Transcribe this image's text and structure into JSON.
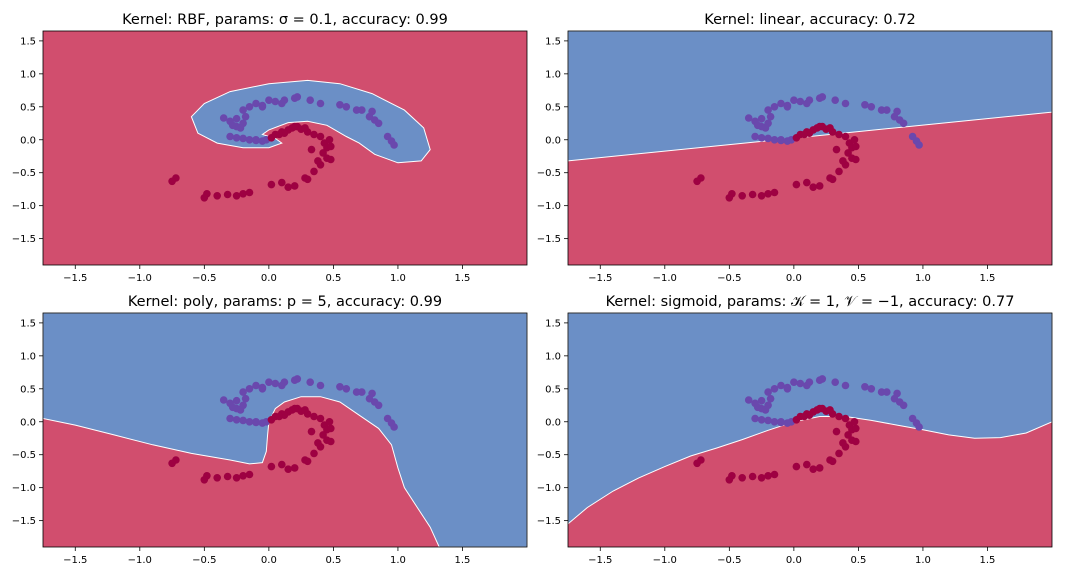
{
  "figure": {
    "background": "#ffffff",
    "region_colors": {
      "class_0": "#d14e6e",
      "class_1": "#6b8fc6"
    },
    "point_colors": {
      "class_0": "#9e0142",
      "class_1": "#6a48ad"
    }
  },
  "chart_data": [
    {
      "type": "scatter",
      "title": "Kernel: RBF, params: σ = 0.1, accuracy: 0.99",
      "xlim": [
        -1.75,
        2.0
      ],
      "ylim": [
        -1.9,
        1.65
      ],
      "xticks": [
        -1.5,
        -1.0,
        -0.5,
        0.0,
        0.5,
        1.0,
        1.5
      ],
      "yticks": [
        -1.5,
        -1.0,
        -0.5,
        0.0,
        0.5,
        1.0,
        1.5
      ],
      "xtick_labels": [
        "−1.5",
        "−1.0",
        "−0.5",
        "0.0",
        "0.5",
        "1.0",
        "1.5"
      ],
      "ytick_labels": [
        "−1.5",
        "−1.0",
        "−0.5",
        "0.0",
        "0.5",
        "1.0",
        "1.5"
      ],
      "background_class": "class_0",
      "decision_region": {
        "class": "class_1",
        "kind": "closed",
        "boundary": [
          [
            -0.6,
            0.35
          ],
          [
            -0.5,
            0.55
          ],
          [
            -0.3,
            0.73
          ],
          [
            0.0,
            0.85
          ],
          [
            0.3,
            0.9
          ],
          [
            0.55,
            0.85
          ],
          [
            0.8,
            0.7
          ],
          [
            1.05,
            0.45
          ],
          [
            1.2,
            0.18
          ],
          [
            1.25,
            -0.15
          ],
          [
            1.18,
            -0.32
          ],
          [
            1.0,
            -0.35
          ],
          [
            0.82,
            -0.22
          ],
          [
            0.7,
            -0.05
          ],
          [
            0.6,
            0.05
          ],
          [
            0.45,
            0.22
          ],
          [
            0.3,
            0.28
          ],
          [
            0.15,
            0.26
          ],
          [
            0.0,
            0.15
          ],
          [
            -0.05,
            0.08
          ],
          [
            0.05,
            0.02
          ],
          [
            0.1,
            -0.05
          ],
          [
            0.0,
            -0.12
          ],
          [
            -0.2,
            -0.12
          ],
          [
            -0.4,
            -0.05
          ],
          [
            -0.55,
            0.1
          ],
          [
            -0.6,
            0.35
          ]
        ]
      }
    },
    {
      "type": "scatter",
      "title": "Kernel: linear, accuracy: 0.72",
      "xlim": [
        -1.75,
        2.0
      ],
      "ylim": [
        -1.9,
        1.65
      ],
      "xticks": [
        -1.5,
        -1.0,
        -0.5,
        0.0,
        0.5,
        1.0,
        1.5
      ],
      "yticks": [
        -1.5,
        -1.0,
        -0.5,
        0.0,
        0.5,
        1.0,
        1.5
      ],
      "xtick_labels": [
        "−1.5",
        "−1.0",
        "−0.5",
        "0.0",
        "0.5",
        "1.0",
        "1.5"
      ],
      "ytick_labels": [
        "−1.5",
        "−1.0",
        "−0.5",
        "0.0",
        "0.5",
        "1.0",
        "1.5"
      ],
      "background_class": "class_0",
      "decision_region": {
        "class": "class_1",
        "kind": "top",
        "boundary": [
          [
            -1.75,
            -0.32
          ],
          [
            2.0,
            0.42
          ]
        ]
      }
    },
    {
      "type": "scatter",
      "title": "Kernel: poly, params: p = 5, accuracy: 0.99",
      "xlim": [
        -1.75,
        2.0
      ],
      "ylim": [
        -1.9,
        1.65
      ],
      "xticks": [
        -1.5,
        -1.0,
        -0.5,
        0.0,
        0.5,
        1.0,
        1.5
      ],
      "yticks": [
        -1.5,
        -1.0,
        -0.5,
        0.0,
        0.5,
        1.0,
        1.5
      ],
      "xtick_labels": [
        "−1.5",
        "−1.0",
        "−0.5",
        "0.0",
        "0.5",
        "1.0",
        "1.5"
      ],
      "ytick_labels": [
        "−1.5",
        "−1.0",
        "−0.5",
        "0.0",
        "0.5",
        "1.0",
        "1.5"
      ],
      "background_class": "class_0",
      "decision_region": {
        "class": "class_1",
        "kind": "top",
        "boundary": [
          [
            -1.75,
            0.05
          ],
          [
            -1.5,
            -0.05
          ],
          [
            -1.2,
            -0.2
          ],
          [
            -0.9,
            -0.35
          ],
          [
            -0.6,
            -0.48
          ],
          [
            -0.3,
            -0.58
          ],
          [
            -0.15,
            -0.64
          ],
          [
            -0.05,
            -0.62
          ],
          [
            -0.02,
            -0.45
          ],
          [
            -0.01,
            -0.2
          ],
          [
            0.0,
            0.0
          ],
          [
            0.05,
            0.2
          ],
          [
            0.12,
            0.3
          ],
          [
            0.25,
            0.38
          ],
          [
            0.4,
            0.38
          ],
          [
            0.55,
            0.3
          ],
          [
            0.7,
            0.1
          ],
          [
            0.85,
            -0.1
          ],
          [
            0.95,
            -0.35
          ],
          [
            1.0,
            -0.7
          ],
          [
            1.05,
            -1.0
          ],
          [
            1.15,
            -1.3
          ],
          [
            1.25,
            -1.6
          ],
          [
            1.32,
            -1.9
          ]
        ]
      }
    },
    {
      "type": "scatter",
      "title": "Kernel: sigmoid, params: 𝒦 = 1, 𝒱 = −1, accuracy: 0.77",
      "xlim": [
        -1.75,
        2.0
      ],
      "ylim": [
        -1.9,
        1.65
      ],
      "xticks": [
        -1.5,
        -1.0,
        -0.5,
        0.0,
        0.5,
        1.0,
        1.5
      ],
      "yticks": [
        -1.5,
        -1.0,
        -0.5,
        0.0,
        0.5,
        1.0,
        1.5
      ],
      "xtick_labels": [
        "−1.5",
        "−1.0",
        "−0.5",
        "0.0",
        "0.5",
        "1.0",
        "1.5"
      ],
      "ytick_labels": [
        "−1.5",
        "−1.0",
        "−0.5",
        "0.0",
        "0.5",
        "1.0",
        "1.5"
      ],
      "background_class": "class_0",
      "decision_region": {
        "class": "class_1",
        "kind": "top",
        "boundary": [
          [
            -1.75,
            -1.55
          ],
          [
            -1.6,
            -1.3
          ],
          [
            -1.4,
            -1.05
          ],
          [
            -1.2,
            -0.85
          ],
          [
            -1.0,
            -0.68
          ],
          [
            -0.8,
            -0.52
          ],
          [
            -0.6,
            -0.4
          ],
          [
            -0.4,
            -0.27
          ],
          [
            -0.2,
            -0.13
          ],
          [
            0.0,
            0.0
          ],
          [
            0.2,
            0.08
          ],
          [
            0.4,
            0.08
          ],
          [
            0.6,
            0.02
          ],
          [
            0.8,
            -0.05
          ],
          [
            1.0,
            -0.12
          ],
          [
            1.2,
            -0.2
          ],
          [
            1.4,
            -0.25
          ],
          [
            1.6,
            -0.24
          ],
          [
            1.8,
            -0.17
          ],
          [
            2.0,
            0.0
          ]
        ]
      }
    }
  ],
  "points": {
    "class_0": [
      [
        0.02,
        0.03
      ],
      [
        0.05,
        0.08
      ],
      [
        0.1,
        0.12
      ],
      [
        0.15,
        0.15
      ],
      [
        0.18,
        0.18
      ],
      [
        0.22,
        0.2
      ],
      [
        0.25,
        0.16
      ],
      [
        0.3,
        0.12
      ],
      [
        0.35,
        0.08
      ],
      [
        0.4,
        0.05
      ],
      [
        0.43,
        -0.05
      ],
      [
        0.45,
        -0.12
      ],
      [
        0.42,
        -0.2
      ],
      [
        0.45,
        -0.28
      ],
      [
        0.4,
        -0.38
      ],
      [
        0.35,
        -0.48
      ],
      [
        0.28,
        -0.58
      ],
      [
        0.2,
        -0.7
      ],
      [
        0.15,
        -0.72
      ],
      [
        0.02,
        -0.68
      ],
      [
        -0.15,
        -0.8
      ],
      [
        -0.2,
        -0.82
      ],
      [
        -0.25,
        -0.85
      ],
      [
        -0.32,
        -0.83
      ],
      [
        -0.4,
        -0.85
      ],
      [
        -0.48,
        -0.82
      ],
      [
        -0.5,
        -0.88
      ],
      [
        -0.72,
        -0.58
      ],
      [
        -0.75,
        -0.63
      ],
      [
        0.3,
        -0.6
      ],
      [
        0.12,
        0.1
      ],
      [
        0.2,
        0.2
      ],
      [
        0.48,
        -0.1
      ],
      [
        0.48,
        -0.3
      ],
      [
        0.38,
        -0.32
      ],
      [
        0.1,
        -0.65
      ],
      [
        0.08,
        0.08
      ],
      [
        0.28,
        0.18
      ],
      [
        0.33,
        -0.15
      ],
      [
        0.47,
        0.0
      ]
    ],
    "class_1": [
      [
        -0.35,
        0.33
      ],
      [
        -0.3,
        0.28
      ],
      [
        -0.28,
        0.22
      ],
      [
        -0.25,
        0.2
      ],
      [
        -0.22,
        0.18
      ],
      [
        -0.2,
        0.25
      ],
      [
        -0.18,
        0.35
      ],
      [
        -0.2,
        0.45
      ],
      [
        -0.15,
        0.5
      ],
      [
        -0.1,
        0.55
      ],
      [
        -0.05,
        0.52
      ],
      [
        0.0,
        0.6
      ],
      [
        0.05,
        0.58
      ],
      [
        0.12,
        0.6
      ],
      [
        0.2,
        0.63
      ],
      [
        0.22,
        0.65
      ],
      [
        0.32,
        0.6
      ],
      [
        0.4,
        0.55
      ],
      [
        0.55,
        0.53
      ],
      [
        0.68,
        0.45
      ],
      [
        0.72,
        0.45
      ],
      [
        0.8,
        0.43
      ],
      [
        0.82,
        0.3
      ],
      [
        0.85,
        0.25
      ],
      [
        0.92,
        0.05
      ],
      [
        0.95,
        -0.02
      ],
      [
        0.97,
        -0.08
      ],
      [
        -0.25,
        0.03
      ],
      [
        -0.2,
        0.02
      ],
      [
        -0.15,
        0.0
      ],
      [
        -0.1,
        -0.01
      ],
      [
        -0.05,
        -0.02
      ],
      [
        -0.02,
        0.0
      ],
      [
        -0.3,
        0.05
      ],
      [
        -0.25,
        0.32
      ],
      [
        -0.05,
        0.5
      ],
      [
        0.1,
        0.55
      ],
      [
        0.6,
        0.5
      ],
      [
        0.78,
        0.35
      ],
      [
        -0.1,
        0.0
      ]
    ]
  }
}
